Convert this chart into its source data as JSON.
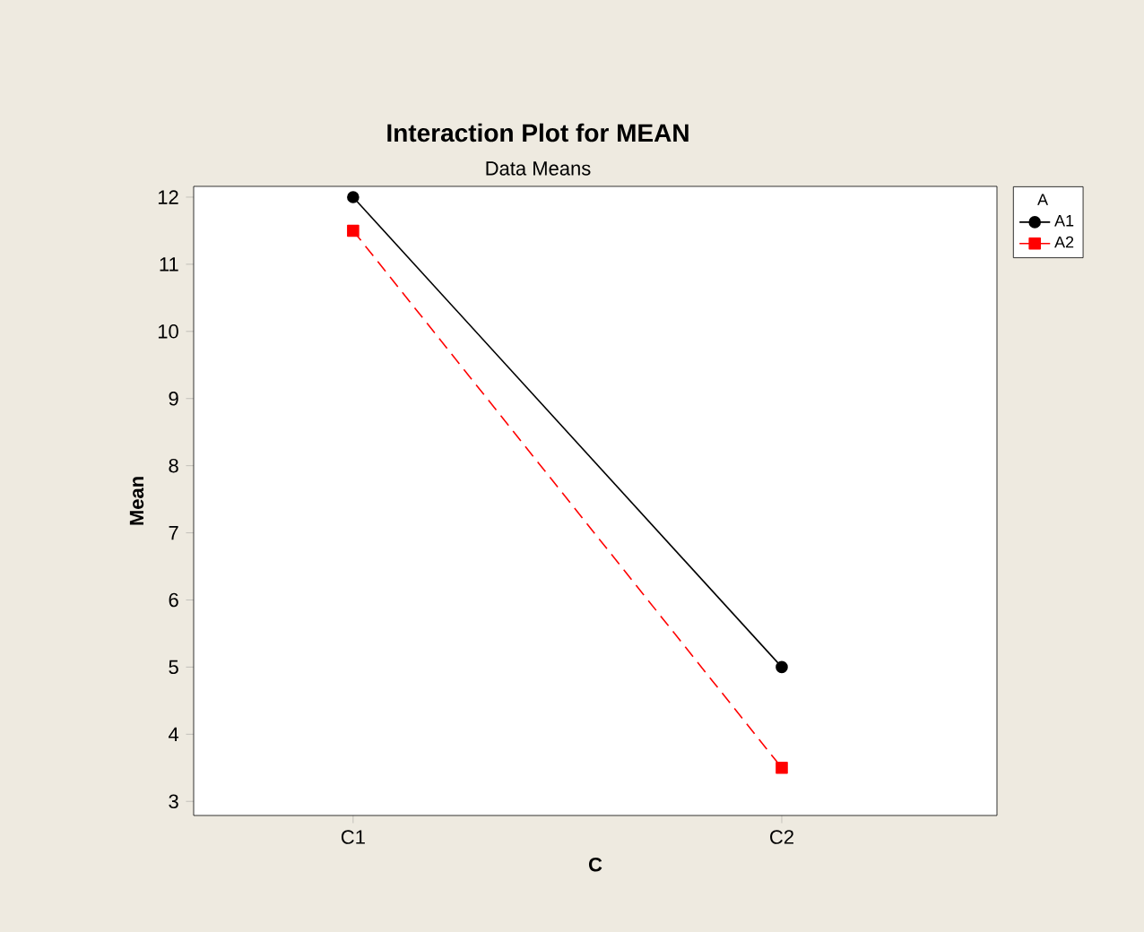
{
  "chart_data": {
    "type": "line",
    "title": "Interaction Plot for MEAN",
    "subtitle": "Data Means",
    "xlabel": "C",
    "ylabel": "Mean",
    "legend_title": "A",
    "categories": [
      "C1",
      "C2"
    ],
    "series": [
      {
        "name": "A1",
        "color": "#000000",
        "values": [
          12,
          5
        ],
        "marker": "circle",
        "line_style": "solid"
      },
      {
        "name": "A2",
        "color": "#ff0000",
        "values": [
          11.5,
          3.5
        ],
        "marker": "square",
        "line_style": "dashed"
      }
    ],
    "ylim": [
      2.79,
      12.16
    ],
    "yticks": [
      3,
      4,
      5,
      6,
      7,
      8,
      9,
      10,
      11,
      12
    ],
    "legend": "top right",
    "grid": false
  }
}
